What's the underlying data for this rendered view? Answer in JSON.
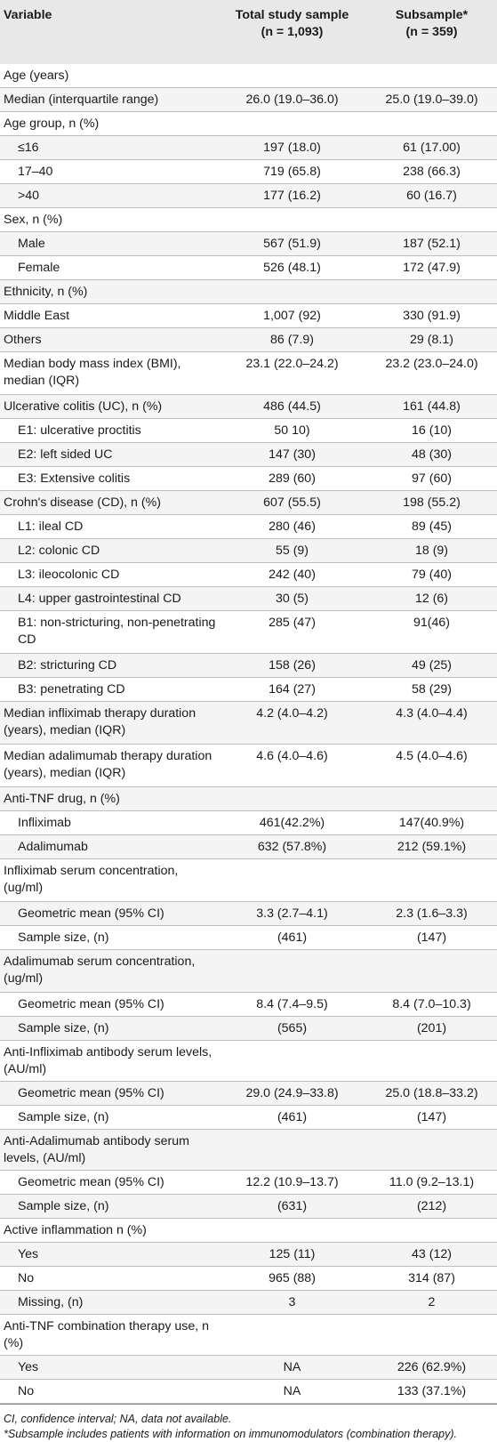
{
  "header": {
    "col1": "Variable",
    "col2_line1": "Total study sample",
    "col2_line2": "(n = 1,093)",
    "col3_line1": "Subsample*",
    "col3_line2": "(n = 359)"
  },
  "rows": [
    {
      "label": "Age (years)",
      "v1": "",
      "v2": "",
      "indent": false,
      "tall": false
    },
    {
      "label": "Median (interquartile range)",
      "v1": "26.0 (19.0–36.0)",
      "v2": "25.0 (19.0–39.0)",
      "indent": false,
      "tall": false
    },
    {
      "label": "Age group, n (%)",
      "v1": "",
      "v2": "",
      "indent": false,
      "tall": false
    },
    {
      "label": "≤16",
      "v1": "197 (18.0)",
      "v2": "61 (17.00)",
      "indent": true,
      "tall": false
    },
    {
      "label": "17–40",
      "v1": "719 (65.8)",
      "v2": "238 (66.3)",
      "indent": true,
      "tall": false
    },
    {
      "label": ">40",
      "v1": "177 (16.2)",
      "v2": "60 (16.7)",
      "indent": true,
      "tall": false
    },
    {
      "label": "Sex, n (%)",
      "v1": "",
      "v2": "",
      "indent": false,
      "tall": false
    },
    {
      "label": "Male",
      "v1": "567 (51.9)",
      "v2": "187 (52.1)",
      "indent": true,
      "tall": false
    },
    {
      "label": "Female",
      "v1": "526 (48.1)",
      "v2": "172 (47.9)",
      "indent": true,
      "tall": false
    },
    {
      "label": "Ethnicity, n (%)",
      "v1": "",
      "v2": "",
      "indent": false,
      "tall": false
    },
    {
      "label": "Middle East",
      "v1": "1,007 (92)",
      "v2": "330 (91.9)",
      "indent": false,
      "tall": false
    },
    {
      "label": "Others",
      "v1": "86 (7.9)",
      "v2": "29 (8.1)",
      "indent": false,
      "tall": false
    },
    {
      "label": "Median body mass index (BMI), median (IQR)",
      "v1": "23.1 (22.0–24.2)",
      "v2": "23.2 (23.0–24.0)",
      "indent": false,
      "tall": true
    },
    {
      "label": "Ulcerative colitis (UC), n (%)",
      "v1": "486 (44.5)",
      "v2": "161 (44.8)",
      "indent": false,
      "tall": false
    },
    {
      "label": "E1: ulcerative proctitis",
      "v1": "50 10)",
      "v2": "16 (10)",
      "indent": true,
      "tall": false
    },
    {
      "label": "E2: left sided UC",
      "v1": "147 (30)",
      "v2": "48 (30)",
      "indent": true,
      "tall": false
    },
    {
      "label": "E3: Extensive colitis",
      "v1": "289 (60)",
      "v2": "97 (60)",
      "indent": true,
      "tall": false
    },
    {
      "label": "Crohn's disease (CD), n (%)",
      "v1": "607 (55.5)",
      "v2": "198 (55.2)",
      "indent": false,
      "tall": false
    },
    {
      "label": "L1: ileal CD",
      "v1": "280 (46)",
      "v2": "89 (45)",
      "indent": true,
      "tall": false
    },
    {
      "label": "L2: colonic CD",
      "v1": "55 (9)",
      "v2": "18 (9)",
      "indent": true,
      "tall": false
    },
    {
      "label": "L3: ileocolonic CD",
      "v1": "242 (40)",
      "v2": "79 (40)",
      "indent": true,
      "tall": false
    },
    {
      "label": "L4: upper gastrointestinal CD",
      "v1": "30 (5)",
      "v2": "12 (6)",
      "indent": true,
      "tall": false
    },
    {
      "label": "B1: non-stricturing, non-penetrating CD",
      "v1": "285 (47)",
      "v2": "91(46)",
      "indent": true,
      "tall": true
    },
    {
      "label": "B2: stricturing CD",
      "v1": "158 (26)",
      "v2": "49 (25)",
      "indent": true,
      "tall": false
    },
    {
      "label": "B3: penetrating CD",
      "v1": "164 (27)",
      "v2": "58 (29)",
      "indent": true,
      "tall": false
    },
    {
      "label": "Median infliximab therapy duration (years), median (IQR)",
      "v1": "4.2 (4.0–4.2)",
      "v2": "4.3 (4.0–4.4)",
      "indent": false,
      "tall": true
    },
    {
      "label": "Median adalimumab therapy duration (years), median (IQR)",
      "v1": "4.6 (4.0–4.6)",
      "v2": "4.5 (4.0–4.6)",
      "indent": false,
      "tall": true
    },
    {
      "label": "Anti-TNF drug, n (%)",
      "v1": "",
      "v2": "",
      "indent": false,
      "tall": false
    },
    {
      "label": "Infliximab",
      "v1": "461(42.2%)",
      "v2": "147(40.9%)",
      "indent": true,
      "tall": false
    },
    {
      "label": "Adalimumab",
      "v1": "632 (57.8%)",
      "v2": "212 (59.1%)",
      "indent": true,
      "tall": false
    },
    {
      "label": "Infliximab serum concentration, (ug/ml)",
      "v1": "",
      "v2": "",
      "indent": false,
      "tall": true
    },
    {
      "label": "Geometric mean (95% CI)",
      "v1": "3.3 (2.7–4.1)",
      "v2": "2.3 (1.6–3.3)",
      "indent": true,
      "tall": false
    },
    {
      "label": "Sample size, (n)",
      "v1": "(461)",
      "v2": "(147)",
      "indent": true,
      "tall": false
    },
    {
      "label": "Adalimumab serum concentration, (ug/ml)",
      "v1": "",
      "v2": "",
      "indent": false,
      "tall": true
    },
    {
      "label": "Geometric mean (95% CI)",
      "v1": "8.4 (7.4–9.5)",
      "v2": "8.4 (7.0–10.3)",
      "indent": true,
      "tall": false
    },
    {
      "label": "Sample size, (n)",
      "v1": "(565)",
      "v2": "(201)",
      "indent": true,
      "tall": false
    },
    {
      "label": "Anti-Infliximab antibody serum levels, (AU/ml)",
      "v1": "",
      "v2": "",
      "indent": false,
      "tall": false
    },
    {
      "label": "Geometric mean (95% CI)",
      "v1": "29.0 (24.9–33.8)",
      "v2": "25.0 (18.8–33.2)",
      "indent": true,
      "tall": false
    },
    {
      "label": "Sample size, (n)",
      "v1": "(461)",
      "v2": "(147)",
      "indent": true,
      "tall": false
    },
    {
      "label": "Anti-Adalimumab antibody serum levels, (AU/ml)",
      "v1": "",
      "v2": "",
      "indent": false,
      "tall": false
    },
    {
      "label": "Geometric mean (95% CI)",
      "v1": "12.2 (10.9–13.7)",
      "v2": "11.0 (9.2–13.1)",
      "indent": true,
      "tall": false
    },
    {
      "label": "Sample size, (n)",
      "v1": "(631)",
      "v2": "(212)",
      "indent": true,
      "tall": false
    },
    {
      "label": "Active inflammation n (%)",
      "v1": "",
      "v2": "",
      "indent": false,
      "tall": false
    },
    {
      "label": "Yes",
      "v1": "125 (11)",
      "v2": "43 (12)",
      "indent": true,
      "tall": false
    },
    {
      "label": "No",
      "v1": "965 (88)",
      "v2": "314 (87)",
      "indent": true,
      "tall": false
    },
    {
      "label": "Missing, (n)",
      "v1": "3",
      "v2": "2",
      "indent": true,
      "tall": false
    },
    {
      "label": "Anti-TNF combination therapy use, n (%)",
      "v1": "",
      "v2": "",
      "indent": false,
      "tall": false
    },
    {
      "label": "Yes",
      "v1": "NA",
      "v2": "226 (62.9%)",
      "indent": true,
      "tall": false
    },
    {
      "label": "No",
      "v1": "NA",
      "v2": "133 (37.1%)",
      "indent": true,
      "tall": false
    }
  ],
  "footnotes": {
    "line1": "CI, confidence interval; NA, data not available.",
    "line2": "*Subsample includes patients with information on immunomodulators (combination therapy)."
  }
}
